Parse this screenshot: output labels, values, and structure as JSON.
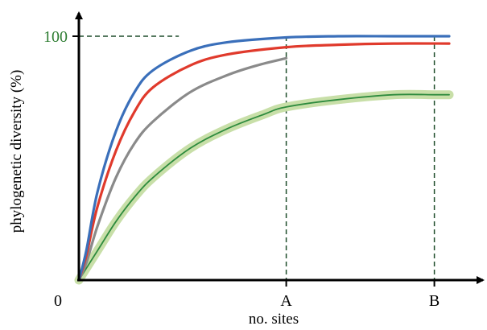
{
  "chart_data": {
    "type": "line",
    "title": "",
    "xlabel": "no. sites",
    "ylabel": "phylogenetic diversity (%)",
    "origin_label": "0",
    "y_ticks": [
      {
        "value": 100,
        "label": "100",
        "color": "#2e7d32"
      }
    ],
    "x_ticks": [
      {
        "value": 0.56,
        "label": "A"
      },
      {
        "value": 0.96,
        "label": "B"
      }
    ],
    "xlim": [
      0,
      1
    ],
    "ylim": [
      0,
      100
    ],
    "grid": false,
    "reference_lines": {
      "color": "#1e4d2b",
      "style": "dashed",
      "x": [
        0.56,
        0.96
      ],
      "y_top": 100
    },
    "series": [
      {
        "color": "#3a6fba",
        "x": [
          0,
          0.02,
          0.05,
          0.1,
          0.15,
          0.2,
          0.3,
          0.4,
          0.56,
          0.7,
          0.85,
          1.0
        ],
        "y": [
          0,
          12,
          36,
          61,
          77,
          86,
          94,
          97.5,
          99.5,
          100,
          100,
          100
        ]
      },
      {
        "color": "#e03a2c",
        "x": [
          0,
          0.02,
          0.05,
          0.1,
          0.15,
          0.2,
          0.3,
          0.4,
          0.56,
          0.7,
          0.85,
          1.0
        ],
        "y": [
          0,
          10,
          30,
          53,
          69,
          79,
          88,
          92.5,
          95.5,
          96.5,
          97,
          97
        ]
      },
      {
        "color": "#8a8a8a",
        "x": [
          0,
          0.02,
          0.05,
          0.1,
          0.15,
          0.2,
          0.3,
          0.4,
          0.48,
          0.56
        ],
        "y": [
          0,
          7,
          22,
          42,
          56,
          65,
          77,
          84,
          88,
          91
        ]
      },
      {
        "color": "#2e8b3e",
        "halo": "#c8dfa8",
        "x": [
          0,
          0.05,
          0.1,
          0.15,
          0.2,
          0.3,
          0.4,
          0.5,
          0.56,
          0.7,
          0.85,
          0.96,
          1.0
        ],
        "y": [
          0,
          12,
          24,
          34,
          42,
          54,
          62,
          68,
          71,
          74,
          76,
          76,
          76
        ]
      }
    ]
  }
}
